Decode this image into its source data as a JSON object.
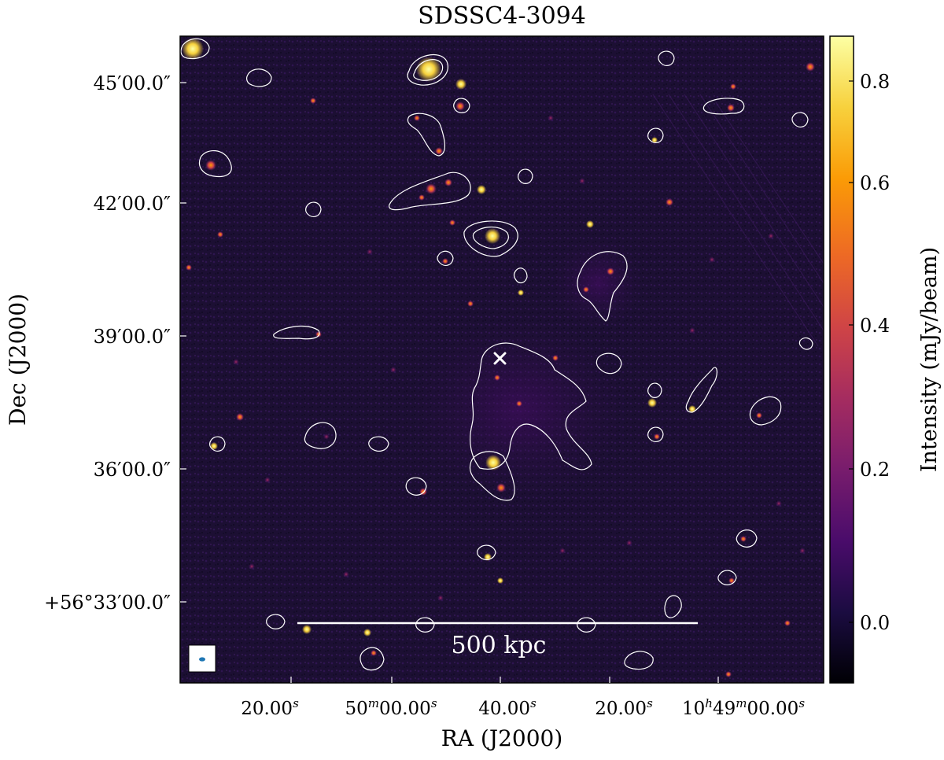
{
  "title": "SDSSC4-3094",
  "xlabel": "RA (J2000)",
  "ylabel": "Dec (J2000)",
  "colorbar": {
    "label": "Intensity (mJy/beam)",
    "ticks": [
      "0.0",
      "0.2",
      "0.4",
      "0.6",
      "0.8"
    ],
    "colormap": "inferno",
    "colors": [
      "#000004",
      "#1b0c41",
      "#4a0c6b",
      "#781c6d",
      "#a52c60",
      "#cf4446",
      "#ed6925",
      "#fb9b06",
      "#f7d13d",
      "#fcffa4"
    ]
  },
  "x_ticks": {
    "t1": {
      "main": "20.00",
      "sup": "s"
    },
    "t2": {
      "pre": "50",
      "pre_sup": "m",
      "main": "00.00",
      "sup": "s"
    },
    "t3": {
      "main": "40.00",
      "sup": "s"
    },
    "t4": {
      "main": "20.00",
      "sup": "s"
    },
    "t5": {
      "pre": "10",
      "pre_sup": "h",
      "mid": "49",
      "mid_sup": "m",
      "main": "00.00",
      "sup": "s"
    }
  },
  "y_ticks": [
    "45′00.0″",
    "42′00.0″",
    "39′00.0″",
    "36′00.0″",
    "+56°33′00.0″"
  ],
  "scalebar_label": "500 kpc",
  "colors": {
    "background_map": "#1c0f33",
    "contour": "#ffffff",
    "beam_ellipse": "#1f77b4",
    "marker": "#ffffff"
  },
  "icons": {
    "center_marker": "x-cross-marker",
    "beam": "beam-ellipse"
  }
}
